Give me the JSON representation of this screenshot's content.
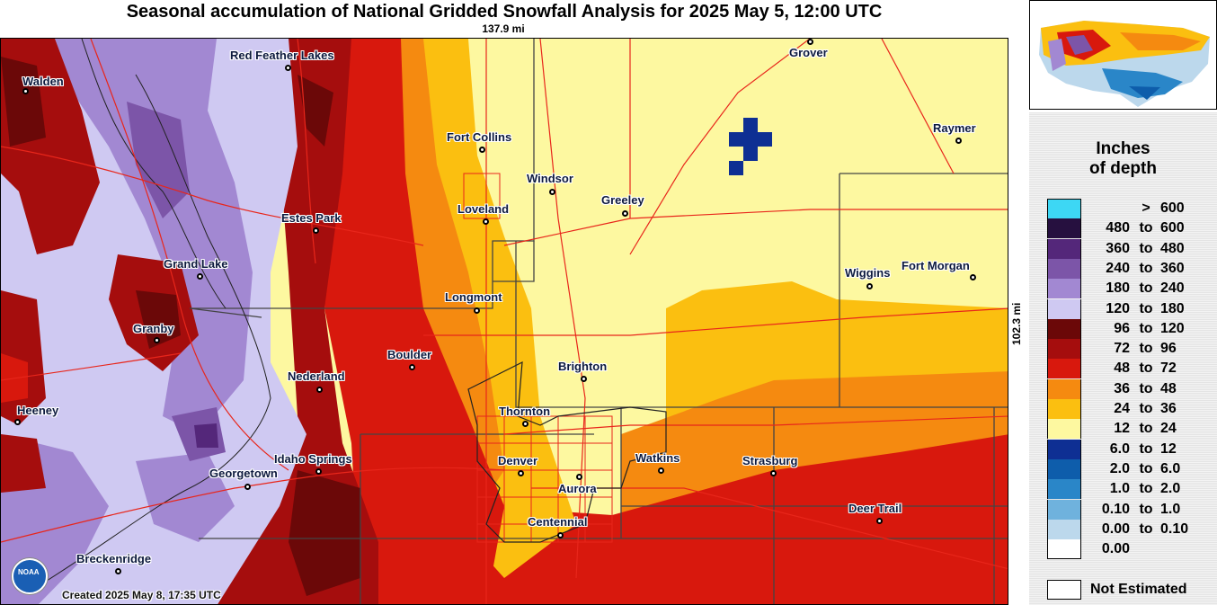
{
  "title": "Seasonal accumulation of National Gridded Snowfall Analysis for 2025 May 5, 12:00 UTC",
  "scale_x": "137.9 mi",
  "scale_y": "102.3 mi",
  "created": "Created 2025 May 8, 17:35 UTC",
  "noaa_text": "NOAA",
  "cities": [
    {
      "name": "Red Feather Lakes",
      "dot": [
        319,
        32
      ],
      "label": [
        255,
        11
      ]
    },
    {
      "name": "Walden",
      "dot": [
        27,
        58
      ],
      "label": [
        24,
        40
      ]
    },
    {
      "name": "Grover",
      "dot": [
        900,
        3
      ],
      "label": [
        877,
        8
      ]
    },
    {
      "name": "Fort Collins",
      "dot": [
        535,
        123
      ],
      "label": [
        496,
        102
      ]
    },
    {
      "name": "Raymer",
      "dot": [
        1065,
        113
      ],
      "label": [
        1037,
        92
      ]
    },
    {
      "name": "Windsor",
      "dot": [
        613,
        170
      ],
      "label": [
        585,
        148
      ]
    },
    {
      "name": "Greeley",
      "dot": [
        694,
        194
      ],
      "label": [
        668,
        172
      ]
    },
    {
      "name": "Loveland",
      "dot": [
        539,
        203
      ],
      "label": [
        508,
        182
      ]
    },
    {
      "name": "Estes Park",
      "dot": [
        350,
        213
      ],
      "label": [
        312,
        192
      ]
    },
    {
      "name": "Grand Lake",
      "dot": [
        221,
        264
      ],
      "label": [
        181,
        243
      ]
    },
    {
      "name": "Wiggins",
      "dot": [
        966,
        275
      ],
      "label": [
        939,
        253
      ]
    },
    {
      "name": "Fort Morgan",
      "dot": [
        1081,
        265
      ],
      "label": [
        1002,
        245
      ]
    },
    {
      "name": "Longmont",
      "dot": [
        529,
        302
      ],
      "label": [
        494,
        280
      ]
    },
    {
      "name": "Granby",
      "dot": [
        173,
        335
      ],
      "label": [
        147,
        315
      ]
    },
    {
      "name": "Boulder",
      "dot": [
        457,
        365
      ],
      "label": [
        430,
        344
      ]
    },
    {
      "name": "Brighton",
      "dot": [
        648,
        378
      ],
      "label": [
        620,
        357
      ]
    },
    {
      "name": "Nederland",
      "dot": [
        354,
        390
      ],
      "label": [
        319,
        368
      ]
    },
    {
      "name": "Heeney",
      "dot": [
        18,
        426
      ],
      "label": [
        18,
        406
      ]
    },
    {
      "name": "Thornton",
      "dot": [
        583,
        428
      ],
      "label": [
        554,
        407
      ]
    },
    {
      "name": "Watkins",
      "dot": [
        734,
        480
      ],
      "label": [
        706,
        459
      ]
    },
    {
      "name": "Strasburg",
      "dot": [
        859,
        483
      ],
      "label": [
        825,
        462
      ]
    },
    {
      "name": "Idaho Springs",
      "dot": [
        353,
        481
      ],
      "label": [
        304,
        460
      ]
    },
    {
      "name": "Denver",
      "dot": [
        578,
        483
      ],
      "label": [
        553,
        462
      ]
    },
    {
      "name": "Aurora",
      "dot": [
        643,
        487
      ],
      "label": [
        620,
        493
      ]
    },
    {
      "name": "Georgetown",
      "dot": [
        274,
        498
      ],
      "label": [
        232,
        476
      ]
    },
    {
      "name": "Deer Trail",
      "dot": [
        977,
        536
      ],
      "label": [
        943,
        515
      ]
    },
    {
      "name": "Centennial",
      "dot": [
        622,
        552
      ],
      "label": [
        586,
        530
      ]
    },
    {
      "name": "Breckenridge",
      "dot": [
        130,
        592
      ],
      "label": [
        84,
        571
      ]
    }
  ],
  "legend": {
    "title_line1": "Inches",
    "title_line2": "of depth",
    "rows": [
      {
        "lo": "",
        "to": ">",
        "hi": "600",
        "color": "#3dd7f4"
      },
      {
        "lo": "480",
        "to": "to",
        "hi": "600",
        "color": "#26103f"
      },
      {
        "lo": "360",
        "to": "to",
        "hi": "480",
        "color": "#54277a"
      },
      {
        "lo": "240",
        "to": "to",
        "hi": "360",
        "color": "#7c55a8"
      },
      {
        "lo": "180",
        "to": "to",
        "hi": "240",
        "color": "#a288d2"
      },
      {
        "lo": "120",
        "to": "to",
        "hi": "180",
        "color": "#cfc9f2"
      },
      {
        "lo": "96",
        "to": "to",
        "hi": "120",
        "color": "#6b0808"
      },
      {
        "lo": "72",
        "to": "to",
        "hi": "96",
        "color": "#a50d0d"
      },
      {
        "lo": "48",
        "to": "to",
        "hi": "72",
        "color": "#d8180d"
      },
      {
        "lo": "36",
        "to": "to",
        "hi": "48",
        "color": "#f58a10"
      },
      {
        "lo": "24",
        "to": "to",
        "hi": "36",
        "color": "#fbbf10"
      },
      {
        "lo": "12",
        "to": "to",
        "hi": "24",
        "color": "#fdf8a0"
      },
      {
        "lo": "6.0",
        "to": "to",
        "hi": "12",
        "color": "#0e2f93"
      },
      {
        "lo": "2.0",
        "to": "to",
        "hi": "6.0",
        "color": "#0e5dab"
      },
      {
        "lo": "1.0",
        "to": "to",
        "hi": "2.0",
        "color": "#2a86c8"
      },
      {
        "lo": "0.10",
        "to": "to",
        "hi": "1.0",
        "color": "#6fb2dd"
      },
      {
        "lo": "0.00",
        "to": "to",
        "hi": "0.10",
        "color": "#bcd8ec"
      },
      {
        "lo": "0.00",
        "to": "",
        "hi": "",
        "color": "#ffffff"
      }
    ],
    "not_estimated": "Not Estimated"
  }
}
